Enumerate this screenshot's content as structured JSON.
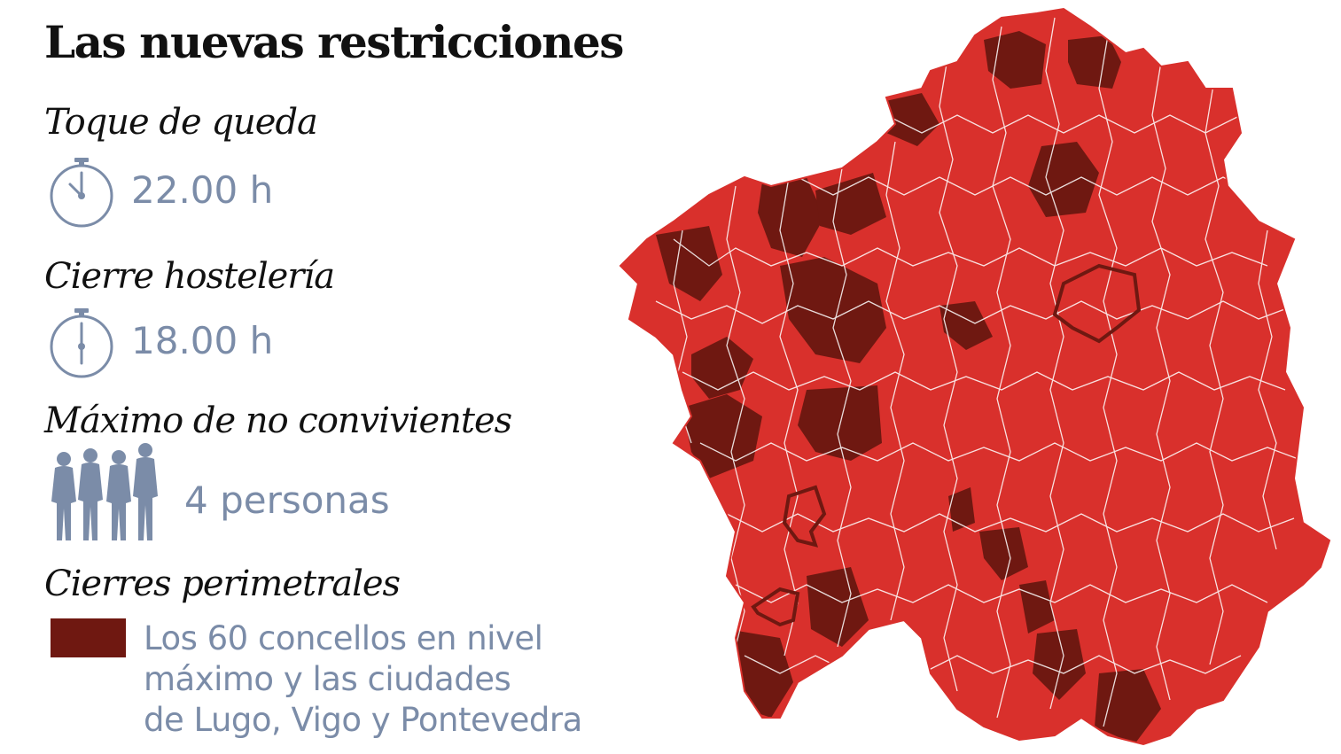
{
  "title": "Las nuevas restricciones",
  "sections": {
    "curfew": {
      "heading": "Toque de queda",
      "value": "22.00 h",
      "icon": "clock-icon"
    },
    "hospitality": {
      "heading": "Cierre hostelería",
      "value": "18.00 h",
      "icon": "clock-icon"
    },
    "gatherings": {
      "heading": "Máximo de no convivientes",
      "value": "4 personas",
      "icon": "people-icon"
    },
    "perimeter": {
      "heading": "Cierres perimetrales",
      "legend_lines": [
        "Los 60 concellos en nivel",
        "máximo y las ciudades",
        "de Lugo, Vigo y Pontevedra"
      ]
    }
  },
  "colors": {
    "max_level": "#6f1811",
    "other_concellos": "#d9302c",
    "border": "#ffffff",
    "text_gray": "#7b8ca8"
  }
}
